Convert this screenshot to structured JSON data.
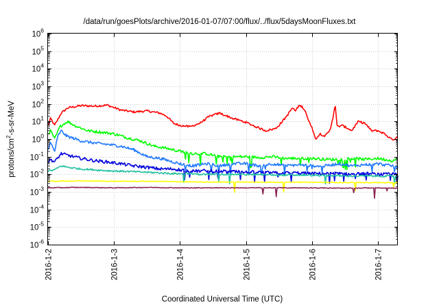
{
  "chart_data": {
    "type": "line",
    "title": "/data/run/goesPlots/archive/2016-01-07/07:00/flux/../flux/5daysMoonFluxes.txt",
    "xlabel": "Coordinated Universal Time (UTC)",
    "ylabel": {
      "prefix": "protons/cm",
      "sup": "2",
      "suffix": "-s-sr-MeV"
    },
    "yscale": "log",
    "ylim_exp": [
      -6,
      6
    ],
    "y_ticks": [
      {
        "base": "10",
        "exp": "-6"
      },
      {
        "base": "10",
        "exp": "-5"
      },
      {
        "base": "10",
        "exp": "-4"
      },
      {
        "base": "10",
        "exp": "-3"
      },
      {
        "base": "10",
        "exp": "-2"
      },
      {
        "base": "10",
        "exp": "-1"
      },
      {
        "base": "10",
        "exp": "0"
      },
      {
        "base": "10",
        "exp": "1"
      },
      {
        "base": "10",
        "exp": "2"
      },
      {
        "base": "10",
        "exp": "3"
      },
      {
        "base": "10",
        "exp": "4"
      },
      {
        "base": "10",
        "exp": "5"
      },
      {
        "base": "10",
        "exp": "6"
      }
    ],
    "x_ticks": [
      "2016-1-2",
      "2016-1-3",
      "2016-1-4",
      "2016-1-5",
      "2016-1-6",
      "2016-1-7"
    ],
    "xlim_days": [
      0,
      5.3
    ],
    "grid": true,
    "series": [
      {
        "color": "#ff0000",
        "points": [
          [
            0,
            6
          ],
          [
            0.04,
            15
          ],
          [
            0.1,
            6
          ],
          [
            0.2,
            30
          ],
          [
            0.3,
            60
          ],
          [
            0.5,
            80
          ],
          [
            0.7,
            75
          ],
          [
            0.9,
            85
          ],
          [
            1.1,
            45
          ],
          [
            1.3,
            35
          ],
          [
            1.5,
            40
          ],
          [
            1.7,
            30
          ],
          [
            1.8,
            20
          ],
          [
            1.9,
            8
          ],
          [
            2.0,
            6
          ],
          [
            2.15,
            5
          ],
          [
            2.3,
            8
          ],
          [
            2.45,
            20
          ],
          [
            2.6,
            30
          ],
          [
            2.8,
            15
          ],
          [
            3.0,
            9
          ],
          [
            3.15,
            5
          ],
          [
            3.3,
            3
          ],
          [
            3.45,
            4
          ],
          [
            3.55,
            10
          ],
          [
            3.65,
            30
          ],
          [
            3.7,
            60
          ],
          [
            3.75,
            40
          ],
          [
            3.8,
            80
          ],
          [
            3.85,
            70
          ],
          [
            3.9,
            40
          ],
          [
            3.95,
            10
          ],
          [
            4.0,
            5
          ],
          [
            4.05,
            1
          ],
          [
            4.12,
            2
          ],
          [
            4.2,
            1.5
          ],
          [
            4.27,
            3
          ],
          [
            4.32,
            20
          ],
          [
            4.35,
            100
          ],
          [
            4.38,
            5
          ],
          [
            4.45,
            6
          ],
          [
            4.55,
            4
          ],
          [
            4.6,
            3
          ],
          [
            4.7,
            10
          ],
          [
            4.8,
            8
          ],
          [
            4.9,
            3
          ],
          [
            5.0,
            3
          ],
          [
            5.1,
            2
          ],
          [
            5.2,
            1
          ],
          [
            5.25,
            1
          ],
          [
            5.3,
            1.5
          ]
        ]
      },
      {
        "color": "#00ff00",
        "points": [
          [
            0,
            2
          ],
          [
            0.04,
            3
          ],
          [
            0.1,
            1
          ],
          [
            0.18,
            5
          ],
          [
            0.25,
            8
          ],
          [
            0.3,
            10
          ],
          [
            0.4,
            6
          ],
          [
            0.6,
            3
          ],
          [
            0.8,
            2.5
          ],
          [
            1.0,
            2
          ],
          [
            1.2,
            1.2
          ],
          [
            1.4,
            0.8
          ],
          [
            1.6,
            0.4
          ],
          [
            1.8,
            0.3
          ],
          [
            2.0,
            0.2
          ],
          [
            2.2,
            0.15
          ],
          [
            2.4,
            0.15
          ],
          [
            2.6,
            0.1
          ],
          [
            2.8,
            0.1
          ],
          [
            3.0,
            0.1
          ],
          [
            3.2,
            0.09
          ],
          [
            3.4,
            0.1
          ],
          [
            3.6,
            0.08
          ],
          [
            3.8,
            0.08
          ],
          [
            4.0,
            0.08
          ],
          [
            4.2,
            0.07
          ],
          [
            4.4,
            0.07
          ],
          [
            4.6,
            0.08
          ],
          [
            4.8,
            0.07
          ],
          [
            5.0,
            0.08
          ],
          [
            5.2,
            0.06
          ],
          [
            5.3,
            0.07
          ]
        ]
      },
      {
        "color": "#1e78ff",
        "points": [
          [
            0,
            0.3
          ],
          [
            0.04,
            0.6
          ],
          [
            0.1,
            0.2
          ],
          [
            0.15,
            1.5
          ],
          [
            0.2,
            3
          ],
          [
            0.28,
            1.5
          ],
          [
            0.5,
            0.8
          ],
          [
            0.7,
            0.6
          ],
          [
            0.9,
            0.5
          ],
          [
            1.1,
            0.4
          ],
          [
            1.3,
            0.25
          ],
          [
            1.5,
            0.1
          ],
          [
            1.7,
            0.08
          ],
          [
            1.9,
            0.05
          ],
          [
            2.0,
            0.04
          ],
          [
            2.2,
            0.03
          ],
          [
            2.4,
            0.04
          ],
          [
            2.6,
            0.03
          ],
          [
            2.8,
            0.04
          ],
          [
            3.0,
            0.04
          ],
          [
            3.2,
            0.03
          ],
          [
            3.4,
            0.04
          ],
          [
            3.6,
            0.03
          ],
          [
            3.8,
            0.035
          ],
          [
            4.0,
            0.03
          ],
          [
            4.2,
            0.03
          ],
          [
            4.4,
            0.04
          ],
          [
            4.6,
            0.03
          ],
          [
            4.8,
            0.035
          ],
          [
            5.0,
            0.04
          ],
          [
            5.2,
            0.03
          ],
          [
            5.3,
            0.03
          ]
        ]
      },
      {
        "color": "#0000dd",
        "points": [
          [
            0,
            0.05
          ],
          [
            0.04,
            0.07
          ],
          [
            0.1,
            0.05
          ],
          [
            0.2,
            0.15
          ],
          [
            0.3,
            0.12
          ],
          [
            0.5,
            0.08
          ],
          [
            0.7,
            0.06
          ],
          [
            0.9,
            0.05
          ],
          [
            1.1,
            0.04
          ],
          [
            1.3,
            0.03
          ],
          [
            1.5,
            0.025
          ],
          [
            1.7,
            0.02
          ],
          [
            1.9,
            0.02
          ],
          [
            2.0,
            0.018
          ],
          [
            2.2,
            0.015
          ],
          [
            2.4,
            0.016
          ],
          [
            2.6,
            0.015
          ],
          [
            2.8,
            0.014
          ],
          [
            3.0,
            0.013
          ],
          [
            3.2,
            0.013
          ],
          [
            3.4,
            0.012
          ],
          [
            3.6,
            0.012
          ],
          [
            3.8,
            0.012
          ],
          [
            4.0,
            0.011
          ],
          [
            4.2,
            0.011
          ],
          [
            4.4,
            0.011
          ],
          [
            4.6,
            0.01
          ],
          [
            4.8,
            0.011
          ],
          [
            5.0,
            0.01
          ],
          [
            5.2,
            0.01
          ],
          [
            5.3,
            0.01
          ]
        ]
      },
      {
        "color": "#20c0a0",
        "points": [
          [
            0,
            0.015
          ],
          [
            0.1,
            0.018
          ],
          [
            0.2,
            0.03
          ],
          [
            0.3,
            0.025
          ],
          [
            0.5,
            0.02
          ],
          [
            0.7,
            0.018
          ],
          [
            0.9,
            0.016
          ],
          [
            1.1,
            0.015
          ],
          [
            1.3,
            0.014
          ],
          [
            1.5,
            0.013
          ],
          [
            1.7,
            0.012
          ],
          [
            1.9,
            0.011
          ],
          [
            2.1,
            0.011
          ],
          [
            2.3,
            0.01
          ],
          [
            2.5,
            0.01
          ],
          [
            2.7,
            0.01
          ],
          [
            2.9,
            0.01
          ],
          [
            3.1,
            0.0095
          ],
          [
            3.3,
            0.0095
          ],
          [
            3.5,
            0.009
          ],
          [
            3.7,
            0.009
          ],
          [
            3.9,
            0.009
          ],
          [
            4.1,
            0.0085
          ],
          [
            4.3,
            0.0085
          ],
          [
            4.5,
            0.008
          ],
          [
            4.7,
            0.008
          ],
          [
            4.9,
            0.008
          ],
          [
            5.1,
            0.0078
          ],
          [
            5.3,
            0.0078
          ]
        ]
      },
      {
        "color": "#ffff00",
        "points": [
          [
            0,
            0.004
          ],
          [
            0.5,
            0.0042
          ],
          [
            1.0,
            0.004
          ],
          [
            1.5,
            0.004
          ],
          [
            2.0,
            0.0038
          ],
          [
            2.5,
            0.0036
          ],
          [
            3.0,
            0.0036
          ],
          [
            3.5,
            0.0035
          ],
          [
            4.0,
            0.0035
          ],
          [
            4.5,
            0.0034
          ],
          [
            5.0,
            0.0034
          ],
          [
            5.3,
            0.0033
          ]
        ]
      },
      {
        "color": "#8b2252",
        "points": [
          [
            0,
            0.0017
          ],
          [
            0.5,
            0.0018
          ],
          [
            1.0,
            0.0017
          ],
          [
            1.5,
            0.0018
          ],
          [
            2.0,
            0.0017
          ],
          [
            2.5,
            0.0017
          ],
          [
            3.0,
            0.0017
          ],
          [
            3.5,
            0.0017
          ],
          [
            4.0,
            0.0017
          ],
          [
            4.5,
            0.0016
          ],
          [
            5.0,
            0.0017
          ],
          [
            5.3,
            0.0016
          ]
        ]
      }
    ]
  }
}
